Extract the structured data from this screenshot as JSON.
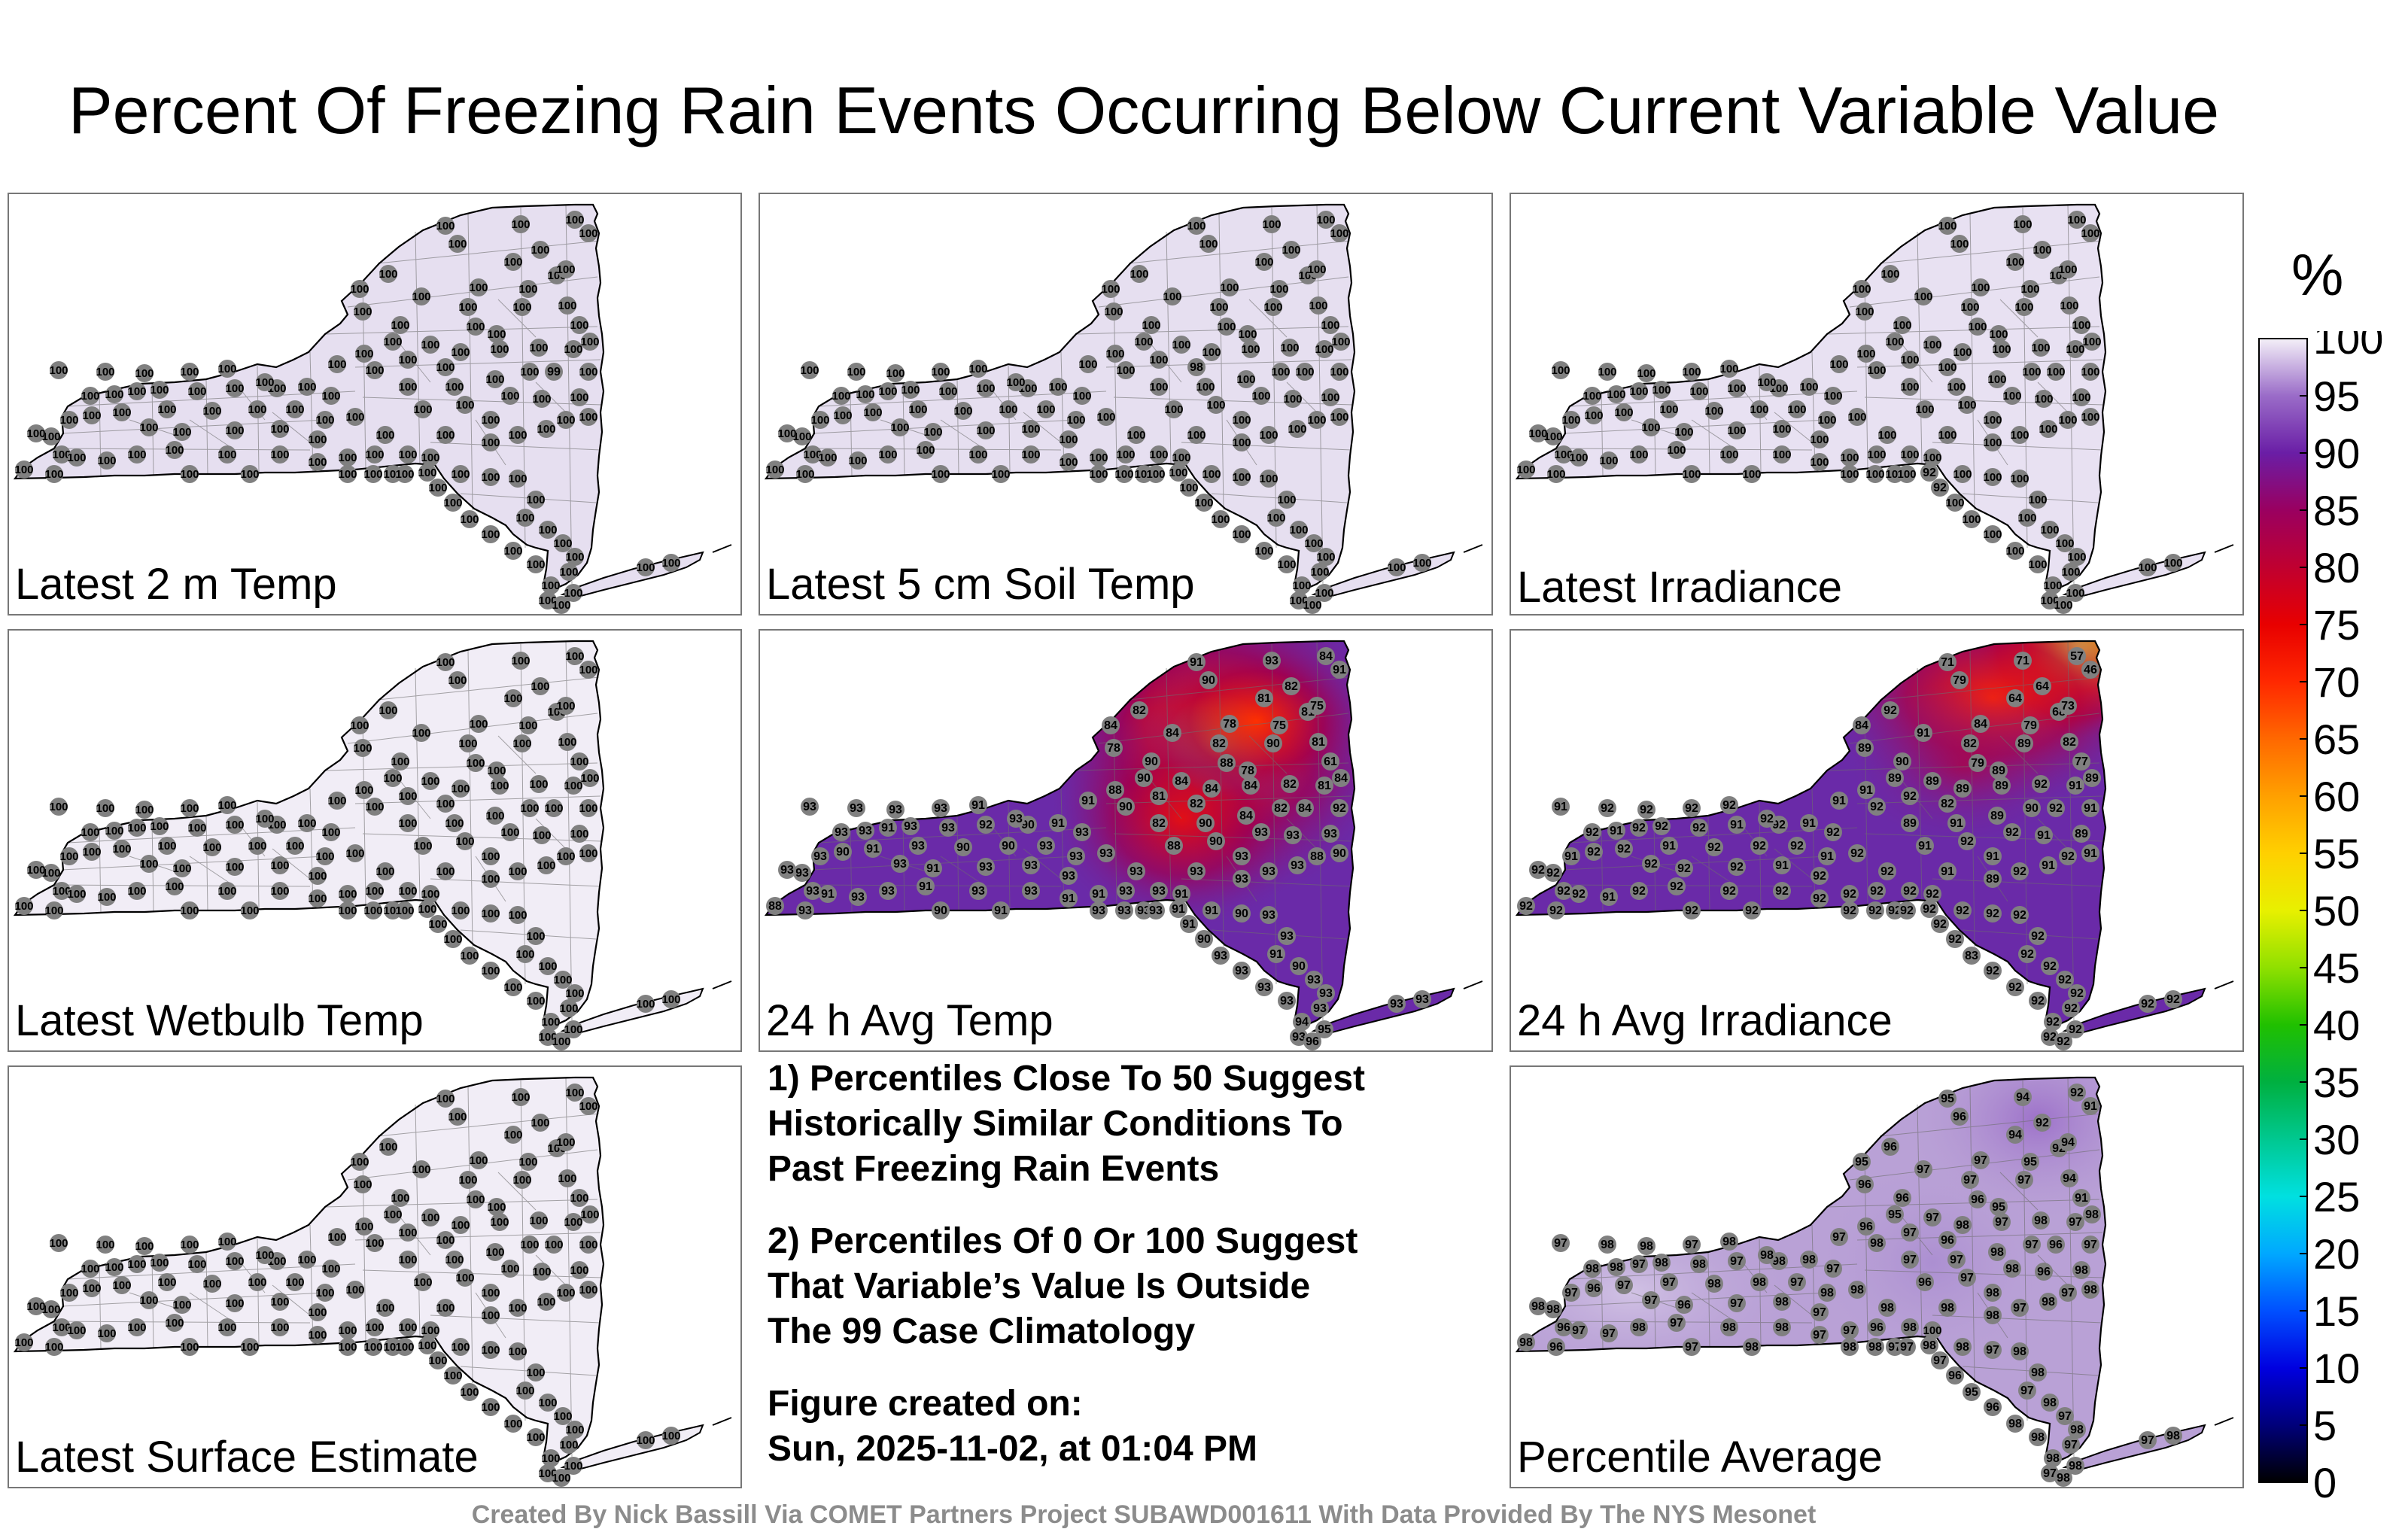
{
  "title": "Percent Of Freezing Rain Events Occurring Below Current Variable Value",
  "panels": [
    {
      "label": "Latest 2 m Temp",
      "mode": "uniform",
      "fill": "#e6dff0",
      "default_value": 100,
      "values": {
        "39": 99
      }
    },
    {
      "label": "Latest 5 cm Soil Temp",
      "mode": "uniform",
      "fill": "#e6dff0",
      "default_value": 100,
      "values": {
        "24": 98
      }
    },
    {
      "label": "Latest Irradiance",
      "mode": "uniform",
      "fill": "#e8e1f2",
      "default_value": 100,
      "values": {
        "116": 92,
        "117": 92
      }
    },
    {
      "label": "Latest Wetbulb Temp",
      "mode": "uniform",
      "fill": "#f1edf6",
      "default_value": 100,
      "values": {}
    },
    {
      "label": "24 h Avg Temp",
      "mode": "temp",
      "fill": "#6a2aa8",
      "default_value": 91,
      "values": {
        "0": 91,
        "1": 90,
        "2": 93,
        "3": 84,
        "4": 91,
        "5": 82,
        "6": 81,
        "7": 81,
        "8": 75,
        "9": 78,
        "10": 82,
        "11": 90,
        "12": 88,
        "13": 78,
        "14": 81,
        "15": 61,
        "16": 75,
        "17": 84,
        "18": 78,
        "19": 82,
        "20": 84,
        "21": 90,
        "22": 90,
        "23": 84,
        "24": 82,
        "25": 84,
        "26": 84,
        "27": 82,
        "28": 81,
        "29": 84,
        "30": 81,
        "31": 88,
        "32": 91,
        "33": 90,
        "34": 82,
        "35": 88,
        "36": 90,
        "37": 84,
        "38": 82,
        "39": 84,
        "40": 92,
        "41": 93,
        "42": 90,
        "43": 88,
        "44": 93,
        "45": 93,
        "46": 93,
        "47": 90,
        "48": 93,
        "49": 91,
        "50": 93,
        "51": 93,
        "52": 93,
        "53": 93,
        "54": 93,
        "55": 93,
        "56": 91,
        "57": 90,
        "58": 92,
        "59": 93,
        "60": 93,
        "61": 91,
        "62": 93,
        "63": 93,
        "64": 93,
        "65": 93,
        "66": 93,
        "67": 93,
        "68": 91,
        "69": 93,
        "70": 93,
        "71": 90,
        "72": 90,
        "73": 93,
        "74": 93,
        "75": 91,
        "76": 90,
        "77": 93,
        "78": 93,
        "79": 93,
        "80": 93,
        "81": 91,
        "82": 93,
        "83": 93,
        "84": 93,
        "85": 91,
        "86": 93,
        "87": 93,
        "88": 91,
        "89": 93,
        "90": 93,
        "91": 91,
        "92": 93,
        "93": 93,
        "94": 91,
        "95": 93,
        "96": 93,
        "97": 88,
        "98": 90,
        "99": 91,
        "100": 93,
        "101": 93,
        "102": 91,
        "103": 90,
        "104": 93,
        "105": 93,
        "106": 91,
        "107": 90,
        "108": 93,
        "109": 93,
        "110": 93,
        "111": 93,
        "112": 93,
        "113": 93,
        "114": 93,
        "115": 90,
        "116": 91,
        "117": 91,
        "118": 93,
        "119": 93,
        "120": 94,
        "121": 93,
        "122": 96,
        "123": 95,
        "124": 93,
        "125": 93
      }
    },
    {
      "label": "24 h Avg Irradiance",
      "mode": "irr",
      "fill": "#6a2aa8",
      "default_value": 91,
      "values": {
        "0": 71,
        "1": 79,
        "2": 71,
        "3": 57,
        "4": 46,
        "5": 64,
        "6": 64,
        "7": 68,
        "8": 79,
        "9": 84,
        "10": 82,
        "11": 89,
        "12": 79,
        "13": 89,
        "14": 82,
        "15": 77,
        "16": 73,
        "17": 84,
        "18": 89,
        "19": 92,
        "20": 91,
        "21": 90,
        "22": 89,
        "23": 89,
        "24": 82,
        "25": 89,
        "26": 89,
        "27": 92,
        "28": 91,
        "29": 89,
        "30": 92,
        "31": 91,
        "32": 91,
        "33": 92,
        "34": 89,
        "35": 91,
        "36": 91,
        "37": 89,
        "38": 90,
        "39": 92,
        "40": 91,
        "41": 89,
        "42": 91,
        "43": 92,
        "44": 91,
        "45": 92,
        "46": 91,
        "47": 92,
        "48": 91,
        "49": 92,
        "50": 89,
        "51": 92,
        "52": 91,
        "53": 92,
        "54": 92,
        "55": 92,
        "56": 91,
        "57": 92,
        "58": 91,
        "59": 92,
        "60": 92,
        "61": 92,
        "62": 91,
        "63": 92,
        "64": 91,
        "65": 92,
        "66": 92,
        "67": 92,
        "68": 92,
        "69": 92,
        "70": 91,
        "71": 92,
        "72": 92,
        "73": 92,
        "74": 91,
        "75": 92,
        "76": 92,
        "77": 91,
        "78": 92,
        "79": 92,
        "80": 92,
        "81": 92,
        "82": 92,
        "83": 91,
        "84": 92,
        "85": 92,
        "86": 92,
        "87": 92,
        "88": 92,
        "89": 92,
        "90": 92,
        "91": 92,
        "92": 92,
        "93": 91,
        "94": 92,
        "95": 92,
        "96": 92,
        "97": 92,
        "98": 92,
        "99": 92,
        "100": 92,
        "101": 92,
        "102": 92,
        "103": 92,
        "104": 92,
        "105": 92,
        "106": 92,
        "107": 92,
        "108": 92,
        "109": 92,
        "110": 92,
        "111": 92,
        "112": 92,
        "113": 92,
        "114": 83,
        "115": 92,
        "116": 92,
        "117": 92,
        "118": 92,
        "119": 92,
        "120": 92,
        "121": 92,
        "122": 92,
        "123": 92,
        "124": 92,
        "125": 92
      }
    },
    {
      "label": "Latest Surface Estimate",
      "mode": "uniform",
      "fill": "#f1edf6",
      "default_value": 100,
      "values": {}
    },
    {
      "label": "Percentile Average",
      "mode": "avg",
      "fill": "#b9a1d6",
      "default_value": 97,
      "values": {
        "0": 95,
        "1": 96,
        "2": 94,
        "3": 92,
        "4": 91,
        "5": 92,
        "6": 94,
        "7": 92,
        "8": 95,
        "9": 97,
        "10": 97,
        "11": 97,
        "12": 96,
        "13": 95,
        "14": 94,
        "15": 91,
        "16": 94,
        "17": 95,
        "18": 96,
        "19": 96,
        "20": 97,
        "21": 96,
        "22": 95,
        "23": 97,
        "24": 96,
        "25": 98,
        "26": 97,
        "27": 98,
        "28": 97,
        "29": 98,
        "30": 97,
        "31": 96,
        "32": 97,
        "33": 98,
        "34": 97,
        "35": 96,
        "36": 97,
        "37": 98,
        "38": 97,
        "39": 96,
        "40": 97,
        "41": 98,
        "42": 98,
        "43": 97,
        "44": 96,
        "45": 98,
        "46": 98,
        "47": 97,
        "48": 98,
        "49": 100,
        "50": 98,
        "51": 97,
        "52": 98,
        "53": 98,
        "54": 98,
        "55": 97,
        "56": 98,
        "57": 98,
        "58": 97,
        "59": 98,
        "60": 98,
        "61": 97,
        "62": 98,
        "63": 98,
        "64": 97,
        "65": 98,
        "66": 98,
        "67": 97,
        "68": 98,
        "69": 98,
        "70": 97,
        "71": 98,
        "72": 98,
        "73": 97,
        "74": 98,
        "75": 97,
        "76": 96,
        "77": 97,
        "78": 98,
        "79": 96,
        "80": 97,
        "81": 96,
        "82": 97,
        "83": 98,
        "84": 97,
        "85": 97,
        "86": 96,
        "87": 98,
        "88": 97,
        "89": 98,
        "90": 98,
        "91": 97,
        "92": 98,
        "93": 97,
        "94": 97,
        "95": 96,
        "96": 98,
        "97": 98,
        "98": 97,
        "99": 98,
        "100": 98,
        "101": 97,
        "102": 98,
        "103": 97,
        "104": 98,
        "105": 98,
        "106": 97,
        "107": 98,
        "108": 97,
        "109": 98,
        "110": 97,
        "111": 98,
        "112": 98,
        "113": 96,
        "114": 95,
        "115": 96,
        "116": 97,
        "117": 98,
        "118": 97,
        "119": 98,
        "120": 98,
        "121": 97,
        "122": 98,
        "123": 98,
        "124": 97,
        "125": 98
      }
    }
  ],
  "notes": {
    "note1": [
      "1) Percentiles Close To 50 Suggest",
      "Historically Similar Conditions To",
      "Past Freezing Rain Events"
    ],
    "note2": [
      "2) Percentiles Of 0 Or 100 Suggest",
      "That Variable’s Value Is Outside",
      "The 99 Case Climatology"
    ],
    "created": [
      "Figure created on:",
      "Sun, 2025-11-02, at 01:04 PM"
    ]
  },
  "colorbar": {
    "unit": "%",
    "ticks": [
      "0",
      "5",
      "10",
      "15",
      "20",
      "25",
      "30",
      "35",
      "40",
      "45",
      "50",
      "55",
      "60",
      "65",
      "70",
      "75",
      "80",
      "85",
      "90",
      "95",
      "100"
    ],
    "colors": [
      "#000000",
      "#00007a",
      "#0000e0",
      "#0050ff",
      "#00a8ff",
      "#00e0e0",
      "#00c890",
      "#00b040",
      "#20c000",
      "#90e000",
      "#e8f000",
      "#ffd000",
      "#ffa000",
      "#ff6800",
      "#ff2800",
      "#e80000",
      "#c00030",
      "#9a0060",
      "#6a1ea6",
      "#9a6cc8",
      "#f4f0f8"
    ]
  },
  "credit": "Created By Nick Bassill Via COMET Partners Project SUBAWD001611 With Data Provided By The NYS Mesonet"
}
